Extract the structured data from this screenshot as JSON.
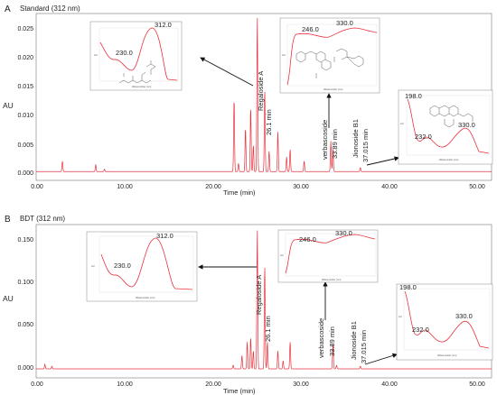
{
  "chart_data": [
    {
      "panel": "A",
      "type": "line",
      "title": "Standard (312 nm)",
      "xlabel": "Time (min)",
      "ylabel": "AU",
      "xlim": [
        0,
        52
      ],
      "ylim": [
        -0.0015,
        0.027
      ],
      "xticks": [
        "0.00",
        "10.00",
        "20.00",
        "30.00",
        "40.00",
        "50.00"
      ],
      "yticks": [
        "0.000",
        "0.005",
        "0.010",
        "0.015",
        "0.020",
        "0.025"
      ],
      "line_color": "#e8323c",
      "peaks": [
        {
          "x": 3.0,
          "y": 0.0018
        },
        {
          "x": 6.8,
          "y": 0.0012
        },
        {
          "x": 7.8,
          "y": 0.0004
        },
        {
          "x": 22.6,
          "y": 0.0125
        },
        {
          "x": 23.1,
          "y": 0.0014
        },
        {
          "x": 23.9,
          "y": 0.0075
        },
        {
          "x": 24.5,
          "y": 0.011
        },
        {
          "x": 24.8,
          "y": 0.0045
        },
        {
          "x": 25.25,
          "y": 0.0265
        },
        {
          "x": 26.1,
          "y": 0.014
        },
        {
          "x": 26.6,
          "y": 0.0035
        },
        {
          "x": 27.6,
          "y": 0.0068
        },
        {
          "x": 28.6,
          "y": 0.0025
        },
        {
          "x": 29.0,
          "y": 0.0038
        },
        {
          "x": 30.6,
          "y": 0.0018
        },
        {
          "x": 33.65,
          "y": 0.0052
        },
        {
          "x": 33.89,
          "y": 0.004
        },
        {
          "x": 37.015,
          "y": 0.0007
        }
      ],
      "annotations": [
        {
          "name": "Regaloside A",
          "time": "26.1 min"
        },
        {
          "name": "verbascoside",
          "time": "33.89 min"
        },
        {
          "name": "Jionoside B1",
          "time": "37.015 min"
        }
      ],
      "insets": [
        {
          "target": "Regaloside A",
          "xlabel": "Wavenumber (nm)",
          "ylabel": "AU",
          "maxima": [
            "230.0",
            "312.0"
          ],
          "series": [
            {
              "x": 200,
              "y": 0.8
            },
            {
              "x": 230,
              "y": 0.45
            },
            {
              "x": 262,
              "y": 0.22
            },
            {
              "x": 312,
              "y": 1.0
            },
            {
              "x": 360,
              "y": 0.05
            },
            {
              "x": 400,
              "y": 0.02
            }
          ]
        },
        {
          "target": "verbascoside",
          "xlabel": "Wavenumber (nm)",
          "ylabel": "AU",
          "maxima": [
            "246.0",
            "330.0"
          ],
          "series": [
            {
              "x": 200,
              "y": 0.1
            },
            {
              "x": 225,
              "y": 0.84
            },
            {
              "x": 246,
              "y": 0.86
            },
            {
              "x": 285,
              "y": 0.78
            },
            {
              "x": 330,
              "y": 0.95
            },
            {
              "x": 400,
              "y": 0.84
            }
          ]
        },
        {
          "target": "Jionoside B1",
          "xlabel": "Wavenumber (nm)",
          "ylabel": "AU",
          "maxima": [
            "198.0",
            "232.0",
            "330.0"
          ],
          "series": [
            {
              "x": 198,
              "y": 1.0
            },
            {
              "x": 215,
              "y": 0.35
            },
            {
              "x": 232,
              "y": 0.45
            },
            {
              "x": 270,
              "y": 0.2
            },
            {
              "x": 330,
              "y": 0.72
            },
            {
              "x": 400,
              "y": 0.02
            }
          ]
        }
      ]
    },
    {
      "panel": "B",
      "type": "line",
      "title": "BDT (312 nm)",
      "xlabel": "Time (min)",
      "ylabel": "AU",
      "xlim": [
        0,
        52
      ],
      "ylim": [
        -0.01,
        0.16
      ],
      "xticks": [
        "0.00",
        "10.00",
        "20.00",
        "30.00",
        "40.00",
        "50.00"
      ],
      "yticks": [
        "0.000",
        "0.050",
        "0.100",
        "0.150"
      ],
      "line_color": "#e8323c",
      "peaks": [
        {
          "x": 1.0,
          "y": 0.005
        },
        {
          "x": 1.8,
          "y": 0.003
        },
        {
          "x": 22.5,
          "y": 0.004
        },
        {
          "x": 23.5,
          "y": 0.015
        },
        {
          "x": 24.1,
          "y": 0.03
        },
        {
          "x": 24.5,
          "y": 0.035
        },
        {
          "x": 24.8,
          "y": 0.02
        },
        {
          "x": 25.25,
          "y": 0.155
        },
        {
          "x": 26.1,
          "y": 0.115
        },
        {
          "x": 26.4,
          "y": 0.03
        },
        {
          "x": 27.6,
          "y": 0.02
        },
        {
          "x": 28.2,
          "y": 0.009
        },
        {
          "x": 29.0,
          "y": 0.03
        },
        {
          "x": 33.89,
          "y": 0.028
        },
        {
          "x": 34.3,
          "y": 0.004
        },
        {
          "x": 37.015,
          "y": 0.003
        }
      ],
      "annotations": [
        {
          "name": "Regaloside A",
          "time": "26.1 min"
        },
        {
          "name": "verbascoside",
          "time": "33.89 min"
        },
        {
          "name": "Jionoside B1",
          "time": "37.015 min"
        }
      ],
      "insets": [
        {
          "target": "Regaloside A",
          "xlabel": "Wavenumber (nm)",
          "ylabel": "AU",
          "maxima": [
            "230.0",
            "312.0"
          ],
          "series": [
            {
              "x": 200,
              "y": 0.8
            },
            {
              "x": 230,
              "y": 0.45
            },
            {
              "x": 262,
              "y": 0.22
            },
            {
              "x": 312,
              "y": 1.0
            },
            {
              "x": 360,
              "y": 0.05
            },
            {
              "x": 400,
              "y": 0.02
            }
          ]
        },
        {
          "target": "verbascoside",
          "xlabel": "Wavenumber (nm)",
          "ylabel": "AU",
          "maxima": [
            "246.0",
            "330.0"
          ],
          "series": [
            {
              "x": 200,
              "y": 0.1
            },
            {
              "x": 225,
              "y": 0.84
            },
            {
              "x": 246,
              "y": 0.86
            },
            {
              "x": 285,
              "y": 0.78
            },
            {
              "x": 330,
              "y": 0.95
            },
            {
              "x": 400,
              "y": 0.84
            }
          ]
        },
        {
          "target": "Jionoside B1",
          "xlabel": "Wavenumber (nm)",
          "ylabel": "AU",
          "maxima": [
            "198.0",
            "232.0",
            "330.0"
          ],
          "series": [
            {
              "x": 198,
              "y": 1.0
            },
            {
              "x": 215,
              "y": 0.35
            },
            {
              "x": 232,
              "y": 0.45
            },
            {
              "x": 270,
              "y": 0.2
            },
            {
              "x": 330,
              "y": 0.72
            },
            {
              "x": 400,
              "y": 0.02
            }
          ]
        }
      ]
    }
  ]
}
